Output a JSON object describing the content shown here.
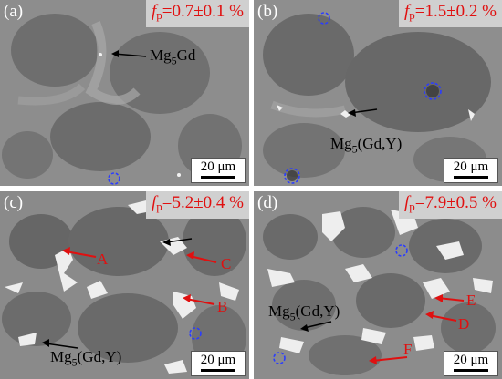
{
  "panels": {
    "a": {
      "label": "(a)",
      "f_symbol": "f",
      "f_sub": "p",
      "f_value": "=0.7±0.1 %",
      "scale": "20 μm"
    },
    "b": {
      "label": "(b)",
      "f_symbol": "f",
      "f_sub": "p",
      "f_value": "=1.5±0.2 %",
      "scale": "20 μm"
    },
    "c": {
      "label": "(c)",
      "f_symbol": "f",
      "f_sub": "p",
      "f_value": "=5.2±0.4 %",
      "scale": "20 μm"
    },
    "d": {
      "label": "(d)",
      "f_symbol": "f",
      "f_sub": "p",
      "f_value": "=7.9±0.5 %",
      "scale": "20 μm"
    }
  },
  "annotations": {
    "a_phase": "Mg5Gd",
    "b_phase": "Mg5(Gd,Y)",
    "c_phase": "Mg5(Gd,Y)",
    "d_phase": "Mg5(Gd,Y)",
    "c_points": [
      "A",
      "B",
      "C"
    ],
    "d_points": [
      "D",
      "E",
      "F"
    ]
  },
  "colors": {
    "highlight": "#e01010",
    "label_box": "#d0d0d0",
    "circle_marker": "#2a3cff"
  }
}
